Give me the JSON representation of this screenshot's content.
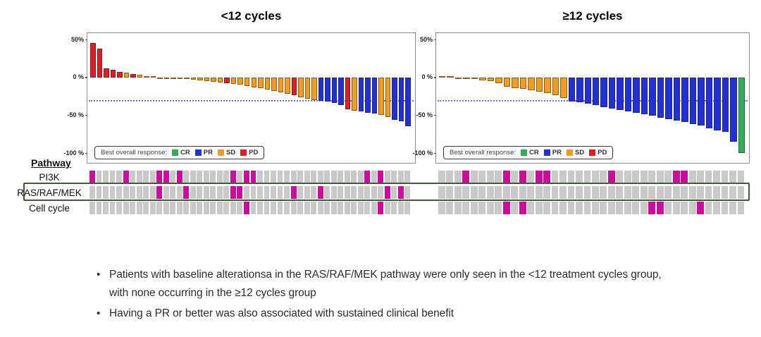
{
  "colors": {
    "CR": "#2fae57",
    "PR": "#2230d9",
    "SD": "#f49c1f",
    "PD": "#e31d23",
    "altered": "#cc0c9c",
    "unaltered": "#c9c9c9",
    "highlight_box": "#3f5d33",
    "ref_line": "#6b6be0"
  },
  "chart_data": [
    {
      "type": "bar",
      "variant": "waterfall",
      "title": "<12 cycles",
      "ylim": [
        -100,
        50
      ],
      "y_ticks": [
        {
          "label": "50%",
          "value": 50
        },
        {
          "label": "0 %",
          "value": 0
        },
        {
          "label": "-50 %",
          "value": -50
        },
        {
          "label": "-100 %",
          "value": -100
        }
      ],
      "reference_line_value": -30,
      "grid": false,
      "legend": {
        "label": "Best overall response:",
        "position": "bottom-left-inside",
        "items": [
          {
            "key": "CR",
            "label": "CR"
          },
          {
            "key": "PR",
            "label": "PR"
          },
          {
            "key": "SD",
            "label": "SD"
          },
          {
            "key": "PD",
            "label": "PD"
          }
        ]
      },
      "bars_format": [
        "value_pct",
        "response"
      ],
      "bars": [
        [
          45,
          "PD"
        ],
        [
          38,
          "PD"
        ],
        [
          12,
          "PD"
        ],
        [
          10,
          "PD"
        ],
        [
          7,
          "PD"
        ],
        [
          6,
          "SD"
        ],
        [
          4,
          "PD"
        ],
        [
          3,
          "SD"
        ],
        [
          2,
          "SD"
        ],
        [
          1,
          "SD"
        ],
        [
          0,
          "SD"
        ],
        [
          0,
          "SD"
        ],
        [
          0,
          "SD"
        ],
        [
          -1,
          "SD"
        ],
        [
          -2,
          "SD"
        ],
        [
          -3,
          "SD"
        ],
        [
          -4,
          "SD"
        ],
        [
          -5,
          "SD"
        ],
        [
          -6,
          "SD"
        ],
        [
          -7,
          "SD"
        ],
        [
          -8,
          "PD"
        ],
        [
          -9,
          "SD"
        ],
        [
          -10,
          "SD"
        ],
        [
          -11,
          "SD"
        ],
        [
          -13,
          "SD"
        ],
        [
          -14,
          "SD"
        ],
        [
          -16,
          "SD"
        ],
        [
          -18,
          "SD"
        ],
        [
          -20,
          "SD"
        ],
        [
          -22,
          "SD"
        ],
        [
          -24,
          "PD"
        ],
        [
          -26,
          "SD"
        ],
        [
          -28,
          "SD"
        ],
        [
          -30,
          "SD"
        ],
        [
          -31,
          "PR"
        ],
        [
          -32,
          "PR"
        ],
        [
          -34,
          "PR"
        ],
        [
          -37,
          "PR"
        ],
        [
          -42,
          "PD"
        ],
        [
          -44,
          "SD"
        ],
        [
          -45,
          "PR"
        ],
        [
          -47,
          "PR"
        ],
        [
          -48,
          "PR"
        ],
        [
          -50,
          "SD"
        ],
        [
          -52,
          "SD"
        ],
        [
          -56,
          "PR"
        ],
        [
          -58,
          "PR"
        ],
        [
          -65,
          "PR"
        ]
      ]
    },
    {
      "type": "bar",
      "variant": "waterfall",
      "title": "≥12 cycles",
      "ylim": [
        -100,
        50
      ],
      "y_ticks": [
        {
          "label": "50%",
          "value": 50
        },
        {
          "label": "0 %",
          "value": 0
        },
        {
          "label": "-50 %",
          "value": -50
        },
        {
          "label": "-100 %",
          "value": -100
        }
      ],
      "reference_line_value": -30,
      "grid": false,
      "legend": {
        "label": "Best overall response:",
        "position": "bottom-left-inside",
        "items": [
          {
            "key": "CR",
            "label": "CR"
          },
          {
            "key": "PR",
            "label": "PR"
          },
          {
            "key": "SD",
            "label": "SD"
          },
          {
            "key": "PD",
            "label": "PD"
          }
        ]
      },
      "bars_format": [
        "value_pct",
        "response"
      ],
      "bars": [
        [
          2,
          "SD"
        ],
        [
          1,
          "SD"
        ],
        [
          0,
          "SD"
        ],
        [
          -1,
          "SD"
        ],
        [
          -2,
          "SD"
        ],
        [
          -4,
          "SD"
        ],
        [
          -5,
          "SD"
        ],
        [
          -8,
          "SD"
        ],
        [
          -12,
          "SD"
        ],
        [
          -14,
          "SD"
        ],
        [
          -15,
          "SD"
        ],
        [
          -17,
          "SD"
        ],
        [
          -19,
          "SD"
        ],
        [
          -21,
          "SD"
        ],
        [
          -24,
          "SD"
        ],
        [
          -27,
          "SD"
        ],
        [
          -32,
          "PR"
        ],
        [
          -33,
          "PR"
        ],
        [
          -35,
          "PR"
        ],
        [
          -37,
          "PR"
        ],
        [
          -39,
          "PR"
        ],
        [
          -41,
          "PR"
        ],
        [
          -43,
          "PR"
        ],
        [
          -45,
          "PR"
        ],
        [
          -47,
          "PR"
        ],
        [
          -49,
          "PR"
        ],
        [
          -51,
          "PR"
        ],
        [
          -53,
          "PR"
        ],
        [
          -55,
          "PR"
        ],
        [
          -57,
          "PR"
        ],
        [
          -59,
          "PR"
        ],
        [
          -62,
          "PR"
        ],
        [
          -64,
          "PR"
        ],
        [
          -67,
          "PR"
        ],
        [
          -70,
          "PR"
        ],
        [
          -72,
          "PR"
        ],
        [
          -85,
          "PR"
        ],
        [
          -100,
          "CR"
        ]
      ]
    },
    {
      "type": "heatmap",
      "title": "Pathway",
      "cell_states": {
        "altered": "magenta",
        "unaltered": "gray"
      },
      "highlighted_row": "RAS/RAF/MEK",
      "groups": [
        {
          "id": "lt12",
          "n": 48
        },
        {
          "id": "gte12",
          "n": 38
        }
      ],
      "rows": [
        {
          "label": "PI3K",
          "altered": {
            "lt12": [
              0,
              5,
              10,
              11,
              13,
              21,
              23,
              24,
              41,
              43
            ],
            "gte12": [
              3,
              8,
              10,
              12,
              13,
              21,
              29,
              30
            ]
          }
        },
        {
          "label": "RAS/RAF/MEK",
          "altered": {
            "lt12": [
              10,
              14,
              21,
              22,
              30,
              34,
              44,
              46
            ],
            "gte12": []
          }
        },
        {
          "label": "Cell cycle",
          "altered": {
            "lt12": [
              23,
              43
            ],
            "gte12": [
              8,
              10,
              26,
              27,
              32
            ]
          }
        }
      ]
    }
  ],
  "bullets": [
    {
      "lines": [
        "Patients with baseline alterationsa in the RAS/RAF/MEK pathway were only seen in the <12 treatment cycles group,",
        "with none occurring in the ≥12 cycles group"
      ]
    },
    {
      "lines": [
        "Having a PR or better was also associated with sustained clinical benefit"
      ]
    }
  ]
}
